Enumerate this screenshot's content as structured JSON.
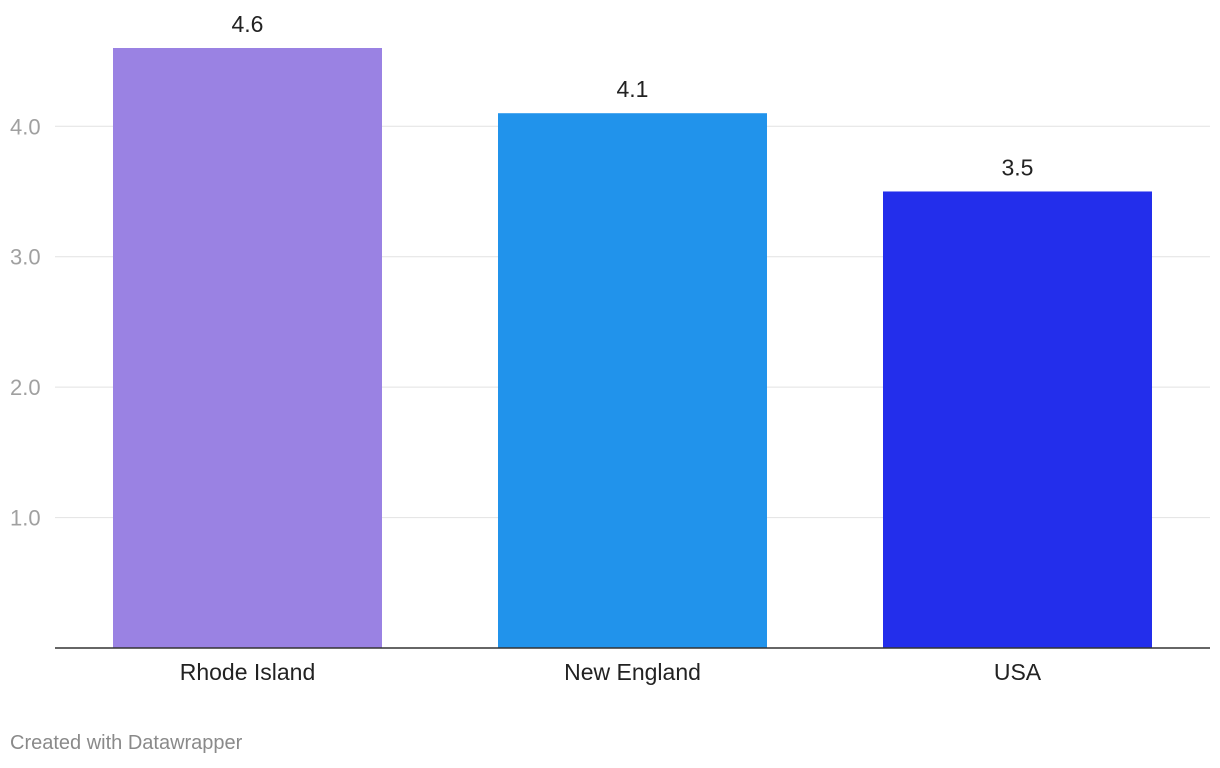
{
  "chart_data": {
    "type": "bar",
    "categories": [
      "Rhode Island",
      "New England",
      "USA"
    ],
    "values": [
      4.6,
      4.1,
      3.5
    ],
    "value_labels": [
      "4.6",
      "4.1",
      "3.5"
    ],
    "colors": [
      "#9a82e3",
      "#2193eb",
      "#232eeb"
    ],
    "y_ticks": [
      1.0,
      2.0,
      3.0,
      4.0
    ],
    "y_tick_labels": [
      "1.0",
      "2.0",
      "3.0",
      "4.0"
    ],
    "ylim": [
      0,
      4.6
    ],
    "grid": true,
    "title": "",
    "xlabel": "",
    "ylabel": ""
  },
  "footer": {
    "credit": "Created with Datawrapper"
  }
}
